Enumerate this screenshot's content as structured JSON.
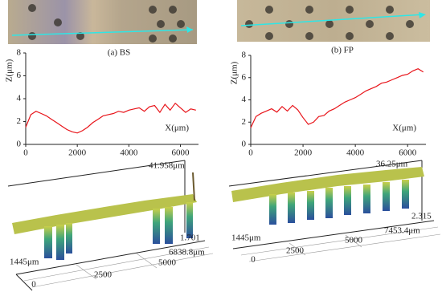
{
  "chart_data": [
    {
      "type": "line",
      "title": "(a) BS",
      "y_label": "Z(μm)",
      "x_label": "X(μm)",
      "x": [
        0,
        200,
        400,
        600,
        800,
        1000,
        1200,
        1400,
        1600,
        1800,
        2000,
        2200,
        2400,
        2600,
        2800,
        3000,
        3200,
        3400,
        3600,
        3800,
        4000,
        4200,
        4400,
        4600,
        4800,
        5000,
        5200,
        5400,
        5600,
        5800,
        6000,
        6200,
        6400,
        6600
      ],
      "series": [
        {
          "color": "#e8141a",
          "values": [
            1.5,
            2.6,
            2.9,
            2.7,
            2.5,
            2.2,
            1.9,
            1.6,
            1.3,
            1.1,
            1.0,
            1.2,
            1.5,
            1.9,
            2.2,
            2.5,
            2.6,
            2.7,
            2.9,
            2.8,
            3.0,
            3.1,
            3.2,
            2.9,
            3.3,
            3.4,
            2.8,
            3.5,
            3.0,
            3.6,
            3.2,
            2.8,
            3.1,
            3.0
          ]
        }
      ],
      "xlim": [
        0,
        6700
      ],
      "xticks": [
        0,
        2000,
        4000,
        6000
      ],
      "ylim": [
        0,
        8
      ],
      "yticks": [
        0,
        2,
        4,
        6,
        8
      ]
    },
    {
      "type": "line",
      "title": "(b) FP",
      "y_label": "Z(μm)",
      "x_label": "X(μm)",
      "x": [
        0,
        200,
        400,
        600,
        800,
        1000,
        1200,
        1400,
        1600,
        1800,
        2000,
        2200,
        2400,
        2600,
        2800,
        3000,
        3200,
        3400,
        3600,
        3800,
        4000,
        4200,
        4400,
        4600,
        4800,
        5000,
        5200,
        5400,
        5600,
        5800,
        6000,
        6200,
        6400,
        6600
      ],
      "series": [
        {
          "color": "#e8141a",
          "values": [
            1.5,
            2.5,
            2.8,
            3.0,
            3.2,
            2.9,
            3.4,
            3.0,
            3.5,
            3.1,
            2.4,
            1.8,
            2.0,
            2.5,
            2.6,
            3.0,
            3.2,
            3.5,
            3.8,
            4.0,
            4.2,
            4.5,
            4.8,
            5.0,
            5.2,
            5.5,
            5.6,
            5.8,
            6.0,
            6.2,
            6.3,
            6.6,
            6.8,
            6.5
          ]
        }
      ],
      "xlim": [
        0,
        6700
      ],
      "xticks": [
        0,
        2000,
        4000,
        6000
      ],
      "ylim": [
        0,
        8
      ],
      "yticks": [
        0,
        2,
        4,
        6,
        8
      ]
    }
  ],
  "surface_plots": [
    {
      "z_top": "41.958μm",
      "z_low": "1.701",
      "y_end": "1445μm",
      "x_ticks": [
        "0",
        "2500",
        "5000"
      ],
      "x_end": "6838.8μm"
    },
    {
      "z_top": "36.25μm",
      "z_low": "2.315",
      "y_end": "1445μm",
      "x_ticks": [
        "0",
        "2500",
        "5000"
      ],
      "x_end": "7453.4μm"
    }
  ]
}
